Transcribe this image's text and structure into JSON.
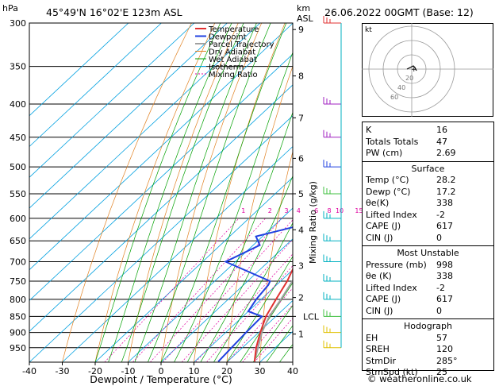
{
  "header": {
    "p_unit": "hPa",
    "location": "45°49'N  16°02'E  123m  ASL",
    "alt_unit_1": "km",
    "alt_unit_2": "ASL",
    "datetime": "26.06.2022  00GMT  (Base: 12)"
  },
  "legend": [
    "Temperature",
    "Dewpoint",
    "Parcel Trajectory",
    "Dry Adiabat",
    "Wet Adiabat",
    "Isotherm",
    "Mixing Ratio"
  ],
  "colors": {
    "temperature": "#e03030",
    "dewpoint": "#2040e0",
    "parcel": "#a0a0a0",
    "dry_adiabat": "#e08020",
    "wet_adiabat": "#00a000",
    "isotherm": "#00a0e0",
    "mixing_ratio": "#e000a0",
    "wind_cyan": "#00b0c0",
    "wind_purple": "#a020c0",
    "wind_blue": "#2040e0",
    "wind_green": "#40c040",
    "wind_yellow": "#e0c000",
    "wind_red": "#e03030"
  },
  "chart_data": {
    "type": "skew-t log-p",
    "title": "45°49'N 16°02'E 123m ASL",
    "xlabel": "Dewpoint / Temperature (°C)",
    "ylabel": "hPa",
    "xlim": [
      -40,
      40
    ],
    "ylim": [
      1000,
      300
    ],
    "x_ticks": [
      -40,
      -30,
      -20,
      -10,
      0,
      10,
      20,
      30,
      40
    ],
    "pressure_ticks": [
      300,
      350,
      400,
      450,
      500,
      550,
      600,
      650,
      700,
      750,
      800,
      850,
      900,
      950
    ],
    "km_ticks": [
      {
        "label": "9",
        "p": 307
      },
      {
        "label": "8",
        "p": 362
      },
      {
        "label": "7",
        "p": 420
      },
      {
        "label": "6",
        "p": 485
      },
      {
        "label": "5",
        "p": 550
      },
      {
        "label": "4",
        "p": 625
      },
      {
        "label": "3",
        "p": 710
      },
      {
        "label": "2",
        "p": 795
      },
      {
        "label": "LCL",
        "p": 850
      },
      {
        "label": "1",
        "p": 905
      }
    ],
    "right_axis_label": "Mixing Ratio (g/kg)",
    "mixing_ratio_labels": [
      "1",
      "2",
      "3",
      "4",
      "6",
      "8",
      "10",
      "15",
      "20",
      "25"
    ],
    "mixing_ratio_values": [
      1,
      2,
      3,
      4,
      6,
      8,
      10,
      15,
      20,
      25
    ],
    "mixing_ratio_label_p": 590,
    "temperature": [
      {
        "p": 998,
        "t": 28.2
      },
      {
        "p": 950,
        "t": 24.2
      },
      {
        "p": 900,
        "t": 20.5
      },
      {
        "p": 850,
        "t": 17.0
      },
      {
        "p": 800,
        "t": 14.5
      },
      {
        "p": 750,
        "t": 12.0
      },
      {
        "p": 700,
        "t": 8.5
      },
      {
        "p": 660,
        "t": 6.5
      },
      {
        "p": 640,
        "t": 6.8
      },
      {
        "p": 600,
        "t": 3.5
      },
      {
        "p": 550,
        "t": 0.0
      },
      {
        "p": 500,
        "t": -4.0
      },
      {
        "p": 450,
        "t": -9.5
      },
      {
        "p": 420,
        "t": -13.0
      },
      {
        "p": 400,
        "t": -17.0
      },
      {
        "p": 350,
        "t": -24.5
      },
      {
        "p": 330,
        "t": -29.0
      },
      {
        "p": 310,
        "t": -32.0
      },
      {
        "p": 300,
        "t": -33.0
      }
    ],
    "dewpoint": [
      {
        "p": 998,
        "t": 17.2
      },
      {
        "p": 950,
        "t": 16.7
      },
      {
        "p": 900,
        "t": 16.2
      },
      {
        "p": 850,
        "t": 15.8
      },
      {
        "p": 835,
        "t": 10.0
      },
      {
        "p": 800,
        "t": 8.5
      },
      {
        "p": 760,
        "t": 7.5
      },
      {
        "p": 750,
        "t": 6.8
      },
      {
        "p": 700,
        "t": -13.0
      },
      {
        "p": 660,
        "t": -8.0
      },
      {
        "p": 640,
        "t": -12.0
      },
      {
        "p": 610,
        "t": 0.0
      },
      {
        "p": 550,
        "t": -3.0
      },
      {
        "p": 500,
        "t": -18.0
      },
      {
        "p": 450,
        "t": -27.0
      },
      {
        "p": 400,
        "t": -35.0
      },
      {
        "p": 380,
        "t": -36.0
      },
      {
        "p": 350,
        "t": -36.0
      },
      {
        "p": 330,
        "t": -34.5
      },
      {
        "p": 318,
        "t": -44.0
      },
      {
        "p": 314,
        "t": -37.0
      },
      {
        "p": 307,
        "t": -40.0
      },
      {
        "p": 300,
        "t": -33.0
      }
    ],
    "parcel": [
      {
        "p": 998,
        "t": 28.2
      },
      {
        "p": 900,
        "t": 21.0
      },
      {
        "p": 850,
        "t": 18.0
      },
      {
        "p": 800,
        "t": 16.0
      },
      {
        "p": 700,
        "t": 11.0
      },
      {
        "p": 600,
        "t": 4.5
      },
      {
        "p": 500,
        "t": -3.5
      },
      {
        "p": 400,
        "t": -14.0
      },
      {
        "p": 300,
        "t": -29.0
      }
    ],
    "wind_barbs": [
      {
        "p": 300,
        "color": "red"
      },
      {
        "p": 400,
        "color": "purple"
      },
      {
        "p": 450,
        "color": "purple"
      },
      {
        "p": 500,
        "color": "blue"
      },
      {
        "p": 550,
        "color": "green"
      },
      {
        "p": 600,
        "color": "cyan"
      },
      {
        "p": 650,
        "color": "cyan"
      },
      {
        "p": 700,
        "color": "cyan"
      },
      {
        "p": 750,
        "color": "cyan"
      },
      {
        "p": 800,
        "color": "cyan"
      },
      {
        "p": 850,
        "color": "green"
      },
      {
        "p": 900,
        "color": "yellow"
      },
      {
        "p": 950,
        "color": "yellow"
      }
    ]
  },
  "hodograph": {
    "label": "kt",
    "ring_labels": [
      "20",
      "40",
      "60"
    ],
    "trace": [
      [
        -3,
        0
      ],
      [
        -1,
        1
      ],
      [
        1,
        2
      ],
      [
        2,
        1
      ],
      [
        3,
        -1
      ]
    ],
    "storm_motion": [
      1,
      0
    ]
  },
  "indices": {
    "basic": [
      {
        "label": "K",
        "value": "16"
      },
      {
        "label": "Totals Totals",
        "value": "47"
      },
      {
        "label": "PW (cm)",
        "value": "2.69"
      }
    ],
    "surface_title": "Surface",
    "surface": [
      {
        "label": "Temp (°C)",
        "value": "28.2"
      },
      {
        "label": "Dewp (°C)",
        "value": "17.2"
      },
      {
        "label": "θe(K)",
        "value": "338"
      },
      {
        "label": "Lifted Index",
        "value": "-2"
      },
      {
        "label": "CAPE (J)",
        "value": "617"
      },
      {
        "label": "CIN (J)",
        "value": "0"
      }
    ],
    "unstable_title": "Most Unstable",
    "unstable": [
      {
        "label": "Pressure (mb)",
        "value": "998"
      },
      {
        "label": "θe (K)",
        "value": "338"
      },
      {
        "label": "Lifted Index",
        "value": "-2"
      },
      {
        "label": "CAPE (J)",
        "value": "617"
      },
      {
        "label": "CIN (J)",
        "value": "0"
      }
    ],
    "hodo_title": "Hodograph",
    "hodo": [
      {
        "label": "EH",
        "value": "57"
      },
      {
        "label": "SREH",
        "value": "120"
      },
      {
        "label": "StmDir",
        "value": "285°"
      },
      {
        "label": "StmSpd (kt)",
        "value": "25"
      }
    ]
  },
  "copyright": "© weatheronline.co.uk"
}
